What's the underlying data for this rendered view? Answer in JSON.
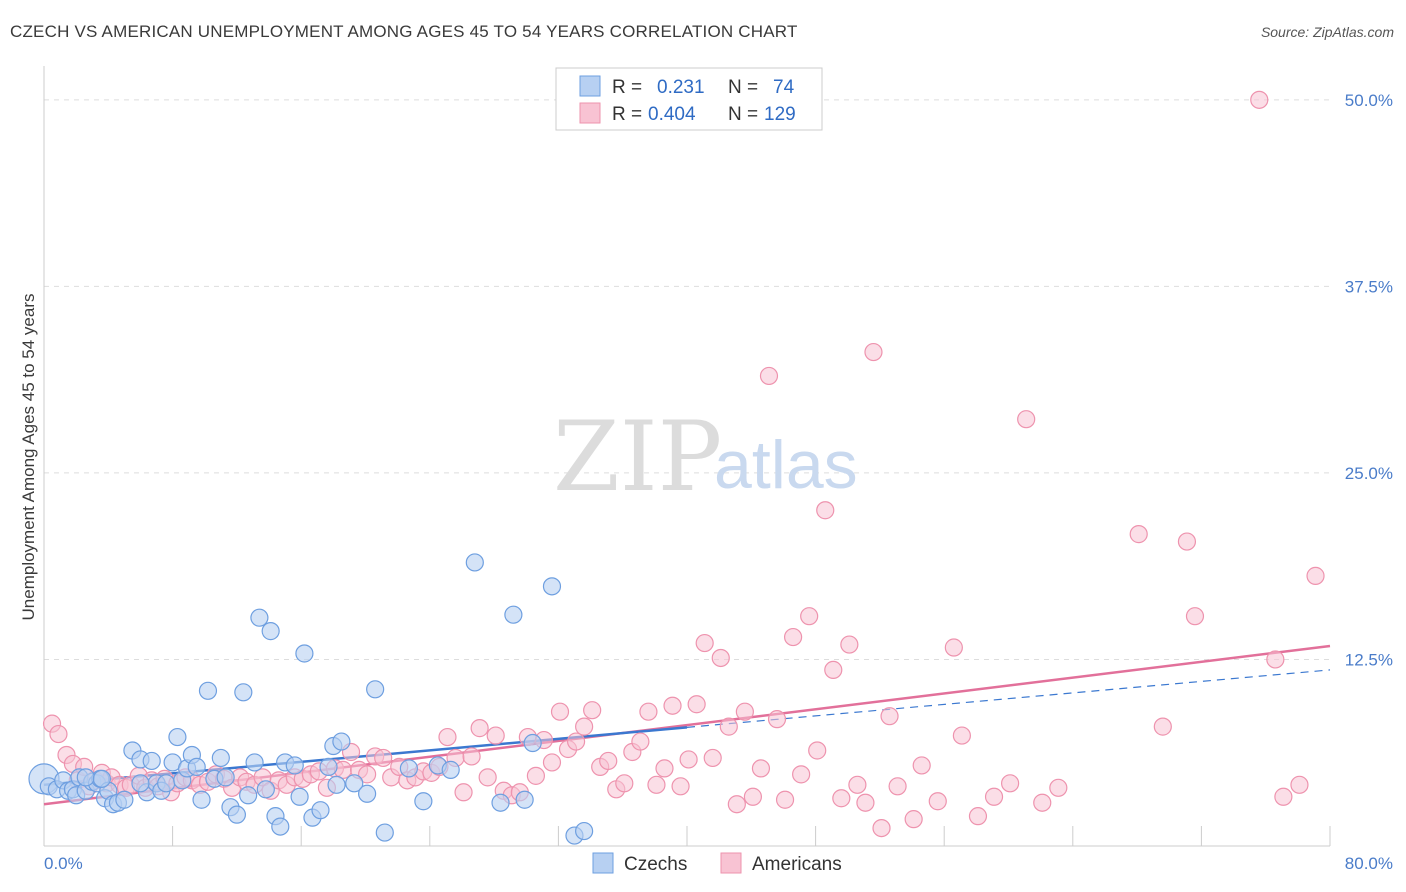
{
  "title": "CZECH VS AMERICAN UNEMPLOYMENT AMONG AGES 45 TO 54 YEARS CORRELATION CHART",
  "source": "Source: ZipAtlas.com",
  "watermark": {
    "part1": "ZIP",
    "part2": "atlas"
  },
  "legend": {
    "rows": [
      {
        "r_label": "R =",
        "r_value": "0.231",
        "n_label": "N =",
        "n_value": "74"
      },
      {
        "r_label": "R =",
        "r_value": "0.404",
        "n_label": "N =",
        "n_value": "129"
      }
    ]
  },
  "bottom_legend": [
    "Czechs",
    "Americans"
  ],
  "colors": {
    "czech_fill": "#b7d0f2",
    "czech_stroke": "#6e9fe0",
    "czech_line": "#3b78d0",
    "american_fill": "#f8c3d3",
    "american_stroke": "#ee93ae",
    "american_line": "#e2709a",
    "grid": "#dddddd",
    "tick_label": "#4a7cc9"
  },
  "chart_data": {
    "type": "scatter",
    "title": "CZECH VS AMERICAN UNEMPLOYMENT AMONG AGES 45 TO 54 YEARS CORRELATION CHART",
    "xlabel": "",
    "ylabel": "Unemployment Among Ages 45 to 54 years",
    "xlim": [
      0,
      80
    ],
    "ylim": [
      0,
      52
    ],
    "x_tick_labels": [
      "0.0%",
      "80.0%"
    ],
    "y_ticks": [
      12.5,
      25.0,
      37.5,
      50.0
    ],
    "y_tick_labels": [
      "12.5%",
      "25.0%",
      "37.5%",
      "50.0%"
    ],
    "grid": true,
    "series": [
      {
        "name": "Czechs",
        "r": 0.231,
        "n": 74,
        "trend": {
          "x0": 0,
          "y0": 4.1,
          "x1": 80,
          "y1": 11.8,
          "solid_until": 40
        },
        "points": [
          [
            0.0,
            4.5
          ],
          [
            0.3,
            4.0
          ],
          [
            0.8,
            3.8
          ],
          [
            1.2,
            4.4
          ],
          [
            1.5,
            3.7
          ],
          [
            1.8,
            3.8
          ],
          [
            2.0,
            3.4
          ],
          [
            2.2,
            4.6
          ],
          [
            2.6,
            3.7
          ],
          [
            3.0,
            4.3
          ],
          [
            3.3,
            4.2
          ],
          [
            3.5,
            4.5
          ],
          [
            3.8,
            3.2
          ],
          [
            4.0,
            3.7
          ],
          [
            4.3,
            2.8
          ],
          [
            4.6,
            2.9
          ],
          [
            5.0,
            3.1
          ],
          [
            5.5,
            6.4
          ],
          [
            6.0,
            5.8
          ],
          [
            6.4,
            3.6
          ],
          [
            6.7,
            5.7
          ],
          [
            7.0,
            4.2
          ],
          [
            7.3,
            3.7
          ],
          [
            7.6,
            4.2
          ],
          [
            8.0,
            5.6
          ],
          [
            8.3,
            7.3
          ],
          [
            8.6,
            4.4
          ],
          [
            8.9,
            5.2
          ],
          [
            9.2,
            6.1
          ],
          [
            9.5,
            5.3
          ],
          [
            9.8,
            3.1
          ],
          [
            10.2,
            10.4
          ],
          [
            10.6,
            4.5
          ],
          [
            11.0,
            5.9
          ],
          [
            11.3,
            4.6
          ],
          [
            11.6,
            2.6
          ],
          [
            12.0,
            2.1
          ],
          [
            12.4,
            10.3
          ],
          [
            12.7,
            3.4
          ],
          [
            13.1,
            5.6
          ],
          [
            13.4,
            15.3
          ],
          [
            13.8,
            3.8
          ],
          [
            14.1,
            14.4
          ],
          [
            14.4,
            2.0
          ],
          [
            14.7,
            1.3
          ],
          [
            15.0,
            5.6
          ],
          [
            15.6,
            5.4
          ],
          [
            15.9,
            3.3
          ],
          [
            16.2,
            12.9
          ],
          [
            16.7,
            1.9
          ],
          [
            17.2,
            2.4
          ],
          [
            17.7,
            5.3
          ],
          [
            18.0,
            6.7
          ],
          [
            18.2,
            4.1
          ],
          [
            18.5,
            7.0
          ],
          [
            19.3,
            4.2
          ],
          [
            20.1,
            3.5
          ],
          [
            20.6,
            10.5
          ],
          [
            21.2,
            0.9
          ],
          [
            22.7,
            5.2
          ],
          [
            23.6,
            3.0
          ],
          [
            24.5,
            5.4
          ],
          [
            25.3,
            5.1
          ],
          [
            26.8,
            19.0
          ],
          [
            28.4,
            2.9
          ],
          [
            29.2,
            15.5
          ],
          [
            29.9,
            3.1
          ],
          [
            30.4,
            6.9
          ],
          [
            31.6,
            17.4
          ],
          [
            33.0,
            0.7
          ],
          [
            33.6,
            1.0
          ],
          [
            2.6,
            4.6
          ],
          [
            6.0,
            4.2
          ],
          [
            3.6,
            4.5
          ]
        ]
      },
      {
        "name": "Americans",
        "r": 0.404,
        "n": 129,
        "trend": {
          "x0": 0,
          "y0": 2.8,
          "x1": 80,
          "y1": 13.4
        },
        "points": [
          [
            0.5,
            8.2
          ],
          [
            0.9,
            7.5
          ],
          [
            1.4,
            6.1
          ],
          [
            1.8,
            5.5
          ],
          [
            2.1,
            4.4
          ],
          [
            2.5,
            5.3
          ],
          [
            2.8,
            4.0
          ],
          [
            3.2,
            4.4
          ],
          [
            3.6,
            4.9
          ],
          [
            3.9,
            4.2
          ],
          [
            4.2,
            4.6
          ],
          [
            4.7,
            4.1
          ],
          [
            5.1,
            3.9
          ],
          [
            5.4,
            4.1
          ],
          [
            5.9,
            4.7
          ],
          [
            6.3,
            3.9
          ],
          [
            6.7,
            4.4
          ],
          [
            7.1,
            4.0
          ],
          [
            7.5,
            4.5
          ],
          [
            7.9,
            3.6
          ],
          [
            8.3,
            4.2
          ],
          [
            8.8,
            4.6
          ],
          [
            9.2,
            4.4
          ],
          [
            9.7,
            4.1
          ],
          [
            10.2,
            4.3
          ],
          [
            10.7,
            4.8
          ],
          [
            11.2,
            4.5
          ],
          [
            11.7,
            3.9
          ],
          [
            12.2,
            4.6
          ],
          [
            12.6,
            4.3
          ],
          [
            13.1,
            4.1
          ],
          [
            13.6,
            4.6
          ],
          [
            14.1,
            3.7
          ],
          [
            14.6,
            4.4
          ],
          [
            15.1,
            4.1
          ],
          [
            15.6,
            4.6
          ],
          [
            16.1,
            4.5
          ],
          [
            16.6,
            4.8
          ],
          [
            17.1,
            5.0
          ],
          [
            17.6,
            3.9
          ],
          [
            18.1,
            5.2
          ],
          [
            18.6,
            5.1
          ],
          [
            19.1,
            6.3
          ],
          [
            19.6,
            5.1
          ],
          [
            20.1,
            4.8
          ],
          [
            20.6,
            6.0
          ],
          [
            21.1,
            5.9
          ],
          [
            21.6,
            4.6
          ],
          [
            22.1,
            5.3
          ],
          [
            22.6,
            4.4
          ],
          [
            23.1,
            4.6
          ],
          [
            23.6,
            5.0
          ],
          [
            24.1,
            4.9
          ],
          [
            24.6,
            5.3
          ],
          [
            25.1,
            7.3
          ],
          [
            25.6,
            5.9
          ],
          [
            26.1,
            3.6
          ],
          [
            26.6,
            6.0
          ],
          [
            27.1,
            7.9
          ],
          [
            27.6,
            4.6
          ],
          [
            28.1,
            7.4
          ],
          [
            28.6,
            3.7
          ],
          [
            29.1,
            3.4
          ],
          [
            29.6,
            3.6
          ],
          [
            30.1,
            7.3
          ],
          [
            30.6,
            4.7
          ],
          [
            31.1,
            7.1
          ],
          [
            31.6,
            5.6
          ],
          [
            32.1,
            9.0
          ],
          [
            32.6,
            6.5
          ],
          [
            33.1,
            7.0
          ],
          [
            33.6,
            8.0
          ],
          [
            34.1,
            9.1
          ],
          [
            34.6,
            5.3
          ],
          [
            35.1,
            5.7
          ],
          [
            35.6,
            3.8
          ],
          [
            36.1,
            4.2
          ],
          [
            36.6,
            6.3
          ],
          [
            37.1,
            7.0
          ],
          [
            37.6,
            9.0
          ],
          [
            38.1,
            4.1
          ],
          [
            38.6,
            5.2
          ],
          [
            39.1,
            9.4
          ],
          [
            39.6,
            4.0
          ],
          [
            40.1,
            5.8
          ],
          [
            40.6,
            9.5
          ],
          [
            41.1,
            13.6
          ],
          [
            41.6,
            5.9
          ],
          [
            42.1,
            12.6
          ],
          [
            42.6,
            8.0
          ],
          [
            43.1,
            2.8
          ],
          [
            43.6,
            9.0
          ],
          [
            44.1,
            3.3
          ],
          [
            44.6,
            5.2
          ],
          [
            45.1,
            31.5
          ],
          [
            45.6,
            8.5
          ],
          [
            46.1,
            3.1
          ],
          [
            46.6,
            14.0
          ],
          [
            47.1,
            4.8
          ],
          [
            47.6,
            15.4
          ],
          [
            48.1,
            6.4
          ],
          [
            48.6,
            22.5
          ],
          [
            49.1,
            11.8
          ],
          [
            49.6,
            3.2
          ],
          [
            50.1,
            13.5
          ],
          [
            50.6,
            4.1
          ],
          [
            51.1,
            2.9
          ],
          [
            51.6,
            33.1
          ],
          [
            52.1,
            1.2
          ],
          [
            52.6,
            8.7
          ],
          [
            53.1,
            4.0
          ],
          [
            54.1,
            1.8
          ],
          [
            54.6,
            5.4
          ],
          [
            55.6,
            3.0
          ],
          [
            56.6,
            13.3
          ],
          [
            57.1,
            7.4
          ],
          [
            58.1,
            2.0
          ],
          [
            59.1,
            3.3
          ],
          [
            60.1,
            4.2
          ],
          [
            61.1,
            28.6
          ],
          [
            62.1,
            2.9
          ],
          [
            63.1,
            3.9
          ],
          [
            68.1,
            20.9
          ],
          [
            69.6,
            8.0
          ],
          [
            71.1,
            20.4
          ],
          [
            71.6,
            15.4
          ],
          [
            76.6,
            12.5
          ],
          [
            77.1,
            3.3
          ],
          [
            78.1,
            4.1
          ],
          [
            79.1,
            18.1
          ],
          [
            75.6,
            50.0
          ]
        ]
      }
    ]
  }
}
